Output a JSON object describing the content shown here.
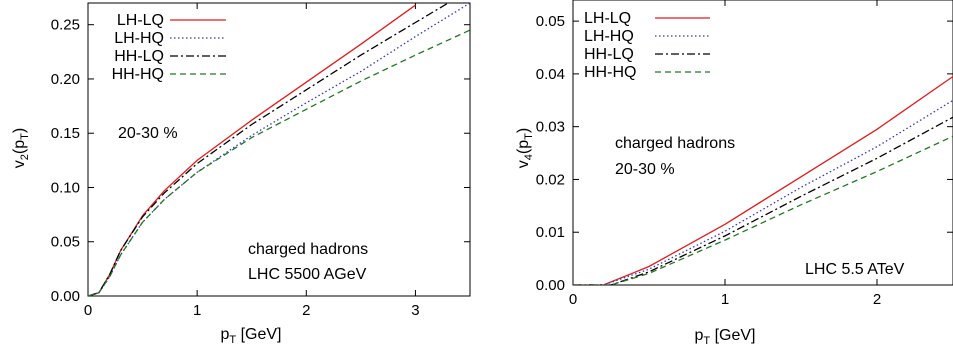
{
  "chart_data": [
    {
      "type": "line",
      "xlabel": {
        "base": "p",
        "sub": "T",
        "rest": " [GeV]"
      },
      "ylabel": {
        "base": "v",
        "sub1": "2",
        "mid": "(p",
        "sub2": "T",
        "end": ")"
      },
      "xlim": [
        0,
        3.5
      ],
      "ylim": [
        0,
        0.27
      ],
      "xticks": [
        {
          "v": 0,
          "label": "0"
        },
        {
          "v": 1,
          "label": "1"
        },
        {
          "v": 2,
          "label": "2"
        },
        {
          "v": 3,
          "label": "3"
        }
      ],
      "yticks": [
        {
          "v": 0,
          "label": "0.00"
        },
        {
          "v": 0.05,
          "label": "0.05"
        },
        {
          "v": 0.1,
          "label": "0.10"
        },
        {
          "v": 0.15,
          "label": "0.15"
        },
        {
          "v": 0.2,
          "label": "0.20"
        },
        {
          "v": 0.25,
          "label": "0.25"
        }
      ],
      "grid": false,
      "legend": "top-left",
      "annotations": [
        "20-30 %",
        "charged hadrons",
        "LHC 5500 AGeV"
      ],
      "series": [
        {
          "name": "LH-LQ",
          "color": "#e41a1c",
          "dash": "solid",
          "points": [
            [
              0,
              0
            ],
            [
              0.1,
              0.003
            ],
            [
              0.2,
              0.02
            ],
            [
              0.3,
              0.042
            ],
            [
              0.5,
              0.074
            ],
            [
              0.7,
              0.097
            ],
            [
              1.0,
              0.125
            ],
            [
              1.5,
              0.162
            ],
            [
              2.0,
              0.197
            ],
            [
              2.5,
              0.232
            ],
            [
              2.75,
              0.25
            ],
            [
              3.0,
              0.268
            ]
          ]
        },
        {
          "name": "LH-HQ",
          "color": "#3333cc",
          "dash": "dotted",
          "points": [
            [
              0,
              0
            ],
            [
              0.1,
              0.003
            ],
            [
              0.2,
              0.018
            ],
            [
              0.3,
              0.038
            ],
            [
              0.5,
              0.068
            ],
            [
              0.7,
              0.089
            ],
            [
              1.0,
              0.114
            ],
            [
              1.5,
              0.148
            ],
            [
              2.0,
              0.178
            ],
            [
              2.5,
              0.207
            ],
            [
              3.0,
              0.239
            ],
            [
              3.5,
              0.27
            ]
          ]
        },
        {
          "name": "HH-LQ",
          "color": "#000000",
          "dash": "dashdot",
          "points": [
            [
              0,
              0
            ],
            [
              0.1,
              0.003
            ],
            [
              0.2,
              0.02
            ],
            [
              0.3,
              0.042
            ],
            [
              0.5,
              0.073
            ],
            [
              0.7,
              0.095
            ],
            [
              1.0,
              0.122
            ],
            [
              1.5,
              0.158
            ],
            [
              2.0,
              0.19
            ],
            [
              2.5,
              0.222
            ],
            [
              3.0,
              0.252
            ],
            [
              3.3,
              0.27
            ]
          ]
        },
        {
          "name": "HH-HQ",
          "color": "#1e7a1e",
          "dash": "dashed",
          "points": [
            [
              0,
              0
            ],
            [
              0.1,
              0.003
            ],
            [
              0.2,
              0.018
            ],
            [
              0.3,
              0.038
            ],
            [
              0.5,
              0.068
            ],
            [
              0.7,
              0.089
            ],
            [
              1.0,
              0.114
            ],
            [
              1.5,
              0.146
            ],
            [
              2.0,
              0.172
            ],
            [
              2.5,
              0.198
            ],
            [
              3.0,
              0.222
            ],
            [
              3.5,
              0.245
            ]
          ]
        }
      ]
    },
    {
      "type": "line",
      "xlabel": {
        "base": "p",
        "sub": "T",
        "rest": " [GeV]"
      },
      "ylabel": {
        "base": "v",
        "sub1": "4",
        "mid": "(p",
        "sub2": "T",
        "end": ")"
      },
      "xlim": [
        0,
        2.5
      ],
      "ylim": [
        0,
        0.054
      ],
      "xticks": [
        {
          "v": 0,
          "label": "0"
        },
        {
          "v": 1,
          "label": "1"
        },
        {
          "v": 2,
          "label": "2"
        }
      ],
      "yticks": [
        {
          "v": 0,
          "label": "0.00"
        },
        {
          "v": 0.01,
          "label": "0.01"
        },
        {
          "v": 0.02,
          "label": "0.02"
        },
        {
          "v": 0.03,
          "label": "0.03"
        },
        {
          "v": 0.04,
          "label": "0.04"
        },
        {
          "v": 0.05,
          "label": "0.05"
        }
      ],
      "grid": false,
      "legend": "top-left",
      "annotations": [
        "charged hadrons",
        "20-30 %",
        "LHC 5.5 ATeV"
      ],
      "series": [
        {
          "name": "LH-LQ",
          "color": "#e41a1c",
          "dash": "solid",
          "points": [
            [
              0,
              0
            ],
            [
              0.2,
              0
            ],
            [
              0.5,
              0.0035
            ],
            [
              1.0,
              0.0115
            ],
            [
              1.5,
              0.0205
            ],
            [
              2.0,
              0.0295
            ],
            [
              2.5,
              0.0395
            ]
          ]
        },
        {
          "name": "LH-HQ",
          "color": "#3333cc",
          "dash": "dotted",
          "points": [
            [
              0,
              0
            ],
            [
              0.2,
              0
            ],
            [
              0.5,
              0.003
            ],
            [
              1.0,
              0.0102
            ],
            [
              1.5,
              0.0185
            ],
            [
              2.0,
              0.0262
            ],
            [
              2.5,
              0.035
            ]
          ]
        },
        {
          "name": "HH-LQ",
          "color": "#000000",
          "dash": "dashdot",
          "points": [
            [
              0,
              0
            ],
            [
              0.25,
              0
            ],
            [
              0.5,
              0.0025
            ],
            [
              1.0,
              0.0093
            ],
            [
              1.5,
              0.0168
            ],
            [
              2.0,
              0.024
            ],
            [
              2.5,
              0.0318
            ]
          ]
        },
        {
          "name": "HH-HQ",
          "color": "#1e7a1e",
          "dash": "dashed",
          "points": [
            [
              0,
              0
            ],
            [
              0.25,
              0
            ],
            [
              0.5,
              0.0022
            ],
            [
              1.0,
              0.0085
            ],
            [
              1.5,
              0.0152
            ],
            [
              2.0,
              0.0215
            ],
            [
              2.5,
              0.0282
            ]
          ]
        }
      ]
    }
  ]
}
